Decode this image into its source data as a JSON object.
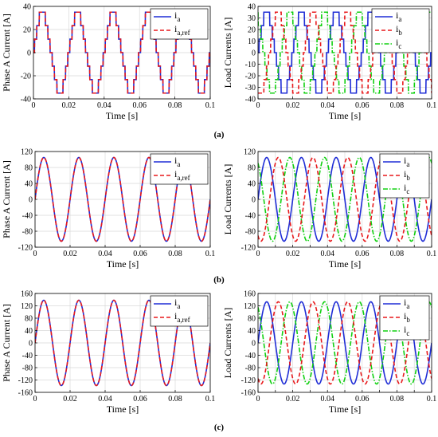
{
  "colors": {
    "ia": "#1f2dd6",
    "ib": "#e8191c",
    "ic": "#10d010",
    "ref": "#e8191c",
    "grid": "#d9d9d9"
  },
  "captions": {
    "a": "(a)",
    "b": "(b)",
    "c": "(c)"
  },
  "chart_data": [
    {
      "id": "a-left",
      "type": "line",
      "xlabel": "Time [s]",
      "ylabel": "Phase A Current [A]",
      "xlim": [
        0,
        0.1
      ],
      "ylim": [
        -40,
        40
      ],
      "yticks": [
        -40,
        -20,
        0,
        20,
        40
      ],
      "xticks": [
        0,
        0.02,
        0.04,
        0.06,
        0.08,
        0.1
      ],
      "xtick_labels": [
        "0",
        "0.02",
        "0.04",
        "0.06",
        "0.08",
        "0.1"
      ],
      "ytick_labels": [
        "-40",
        "-20",
        "0",
        "20",
        "40"
      ],
      "grid": true,
      "legend_position": "top-right",
      "waveform": {
        "frequency_hz": 50,
        "amplitude": 35,
        "shape": "stepped-sine"
      },
      "series": [
        {
          "name": "i",
          "sub": "a",
          "color_key": "ia",
          "style": "solid",
          "phase_deg": 0
        },
        {
          "name": "i",
          "sub": "a,ref",
          "color_key": "ref",
          "style": "dashed",
          "phase_deg": 0
        }
      ]
    },
    {
      "id": "a-right",
      "type": "line",
      "xlabel": "Time [s]",
      "ylabel": "Load Currents [A]",
      "xlim": [
        0,
        0.1
      ],
      "ylim": [
        -40,
        40
      ],
      "yticks": [
        -40,
        -30,
        -20,
        -10,
        0,
        10,
        20,
        30,
        40
      ],
      "xticks": [
        0,
        0.02,
        0.04,
        0.06,
        0.08,
        0.1
      ],
      "xtick_labels": [
        "0",
        "0.02",
        "0.04",
        "0.06",
        "0.08",
        "0.1"
      ],
      "ytick_labels": [
        "-40",
        "-30",
        "-20",
        "-10",
        "0",
        "10",
        "20",
        "30",
        "40"
      ],
      "grid": true,
      "legend_position": "top-right",
      "waveform": {
        "frequency_hz": 50,
        "amplitude": 35,
        "shape": "stepped-sine"
      },
      "series": [
        {
          "name": "i",
          "sub": "a",
          "color_key": "ia",
          "style": "solid",
          "phase_deg": 0
        },
        {
          "name": "i",
          "sub": "b",
          "color_key": "ib",
          "style": "dashed",
          "phase_deg": -120
        },
        {
          "name": "i",
          "sub": "c",
          "color_key": "ic",
          "style": "dashdot",
          "phase_deg": 120
        }
      ]
    },
    {
      "id": "b-left",
      "type": "line",
      "xlabel": "Time [s]",
      "ylabel": "Phase A Current [A]",
      "xlim": [
        0,
        0.1
      ],
      "ylim": [
        -120,
        120
      ],
      "yticks": [
        -120,
        -80,
        -40,
        0,
        40,
        80,
        120
      ],
      "xticks": [
        0,
        0.02,
        0.04,
        0.06,
        0.08,
        0.1
      ],
      "xtick_labels": [
        "0",
        "0.02",
        "0.04",
        "0.06",
        "0.08",
        "0.1"
      ],
      "ytick_labels": [
        "-120",
        "-80",
        "-40",
        "0",
        "40",
        "80",
        "120"
      ],
      "grid": true,
      "legend_position": "top-right",
      "waveform": {
        "frequency_hz": 50,
        "amplitude": 105,
        "shape": "sine"
      },
      "series": [
        {
          "name": "i",
          "sub": "a",
          "color_key": "ia",
          "style": "solid",
          "phase_deg": 0
        },
        {
          "name": "i",
          "sub": "a,ref",
          "color_key": "ref",
          "style": "dashed",
          "phase_deg": 0
        }
      ]
    },
    {
      "id": "b-right",
      "type": "line",
      "xlabel": "Time [s]",
      "ylabel": "Load Currents [A]",
      "xlim": [
        0,
        0.1
      ],
      "ylim": [
        -120,
        120
      ],
      "yticks": [
        -120,
        -80,
        -40,
        0,
        40,
        80,
        120
      ],
      "xticks": [
        0,
        0.01,
        0.02,
        0.03,
        0.04,
        0.05,
        0.06,
        0.07,
        0.08,
        0.09,
        0.1
      ],
      "xtick_labels": [
        "0",
        "",
        "0.02",
        "",
        "0.04",
        "",
        "0.06",
        "",
        "0.08",
        "",
        "0.1"
      ],
      "ytick_labels": [
        "-120",
        "-80",
        "-40",
        "0",
        "40",
        "80",
        "120"
      ],
      "grid": true,
      "legend_position": "top-right",
      "waveform": {
        "frequency_hz": 50,
        "amplitude": 105,
        "shape": "sine"
      },
      "series": [
        {
          "name": "i",
          "sub": "a",
          "color_key": "ia",
          "style": "solid",
          "phase_deg": 0
        },
        {
          "name": "i",
          "sub": "b",
          "color_key": "ib",
          "style": "dashed",
          "phase_deg": -120
        },
        {
          "name": "i",
          "sub": "c",
          "color_key": "ic",
          "style": "dashdot",
          "phase_deg": 120
        }
      ]
    },
    {
      "id": "c-left",
      "type": "line",
      "xlabel": "Time [s]",
      "ylabel": "Phase A Current [A]",
      "xlim": [
        0,
        0.1
      ],
      "ylim": [
        -160,
        160
      ],
      "yticks": [
        -160,
        -120,
        -80,
        -40,
        0,
        40,
        80,
        120,
        160
      ],
      "xticks": [
        0,
        0.02,
        0.04,
        0.06,
        0.08,
        0.1
      ],
      "xtick_labels": [
        "0",
        "0.02",
        "0.04",
        "0.06",
        "0.08",
        "0.1"
      ],
      "ytick_labels": [
        "-160",
        "-120",
        "-80",
        "-40",
        "0",
        "40",
        "80",
        "120",
        "160"
      ],
      "grid": true,
      "legend_position": "top-right",
      "waveform": {
        "frequency_hz": 50,
        "amplitude": 138,
        "shape": "sine"
      },
      "series": [
        {
          "name": "i",
          "sub": "a",
          "color_key": "ia",
          "style": "solid",
          "phase_deg": 0
        },
        {
          "name": "i",
          "sub": "a,ref",
          "color_key": "ref",
          "style": "dashed",
          "phase_deg": 0
        }
      ]
    },
    {
      "id": "c-right",
      "type": "line",
      "xlabel": "Time [s]",
      "ylabel": "Load Currents [A]",
      "xlim": [
        0,
        0.1
      ],
      "ylim": [
        -160,
        160
      ],
      "yticks": [
        -160,
        -120,
        -80,
        -40,
        0,
        40,
        80,
        120,
        160
      ],
      "xticks": [
        0,
        0.01,
        0.02,
        0.03,
        0.04,
        0.05,
        0.06,
        0.07,
        0.08,
        0.09,
        0.1
      ],
      "xtick_labels": [
        "0",
        "",
        "0.02",
        "",
        "0.04",
        "",
        "0.06",
        "",
        "0.08",
        "",
        "0.1"
      ],
      "ytick_labels": [
        "-160",
        "-120",
        "-80",
        "-40",
        "0",
        "40",
        "80",
        "120",
        "160"
      ],
      "grid": true,
      "legend_position": "top-right",
      "waveform": {
        "frequency_hz": 50,
        "amplitude": 133,
        "shape": "sine"
      },
      "series": [
        {
          "name": "i",
          "sub": "a",
          "color_key": "ia",
          "style": "solid",
          "phase_deg": 0
        },
        {
          "name": "i",
          "sub": "b",
          "color_key": "ib",
          "style": "dashed",
          "phase_deg": -120
        },
        {
          "name": "i",
          "sub": "c",
          "color_key": "ic",
          "style": "dashdot",
          "phase_deg": 120
        }
      ]
    }
  ]
}
